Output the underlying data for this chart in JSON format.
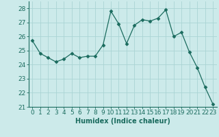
{
  "x": [
    0,
    1,
    2,
    3,
    4,
    5,
    6,
    7,
    8,
    9,
    10,
    11,
    12,
    13,
    14,
    15,
    16,
    17,
    18,
    19,
    20,
    21,
    22,
    23
  ],
  "y": [
    25.7,
    24.8,
    24.5,
    24.2,
    24.4,
    24.8,
    24.5,
    24.6,
    24.6,
    25.4,
    27.8,
    26.9,
    25.5,
    26.8,
    27.2,
    27.1,
    27.3,
    27.9,
    26.0,
    26.3,
    24.9,
    23.8,
    22.4,
    21.2
  ],
  "line_color": "#1a6b5e",
  "marker": "D",
  "marker_size": 2.5,
  "bg_color": "#cceaea",
  "grid_color": "#aad4d4",
  "xlabel": "Humidex (Indice chaleur)",
  "ylim": [
    21,
    28.5
  ],
  "xlim": [
    -0.5,
    23.5
  ],
  "yticks": [
    21,
    22,
    23,
    24,
    25,
    26,
    27,
    28
  ],
  "xticks": [
    0,
    1,
    2,
    3,
    4,
    5,
    6,
    7,
    8,
    9,
    10,
    11,
    12,
    13,
    14,
    15,
    16,
    17,
    18,
    19,
    20,
    21,
    22,
    23
  ],
  "label_color": "#1a6b5e",
  "tick_color": "#1a6b5e",
  "label_fontsize": 7,
  "tick_fontsize": 6.5
}
